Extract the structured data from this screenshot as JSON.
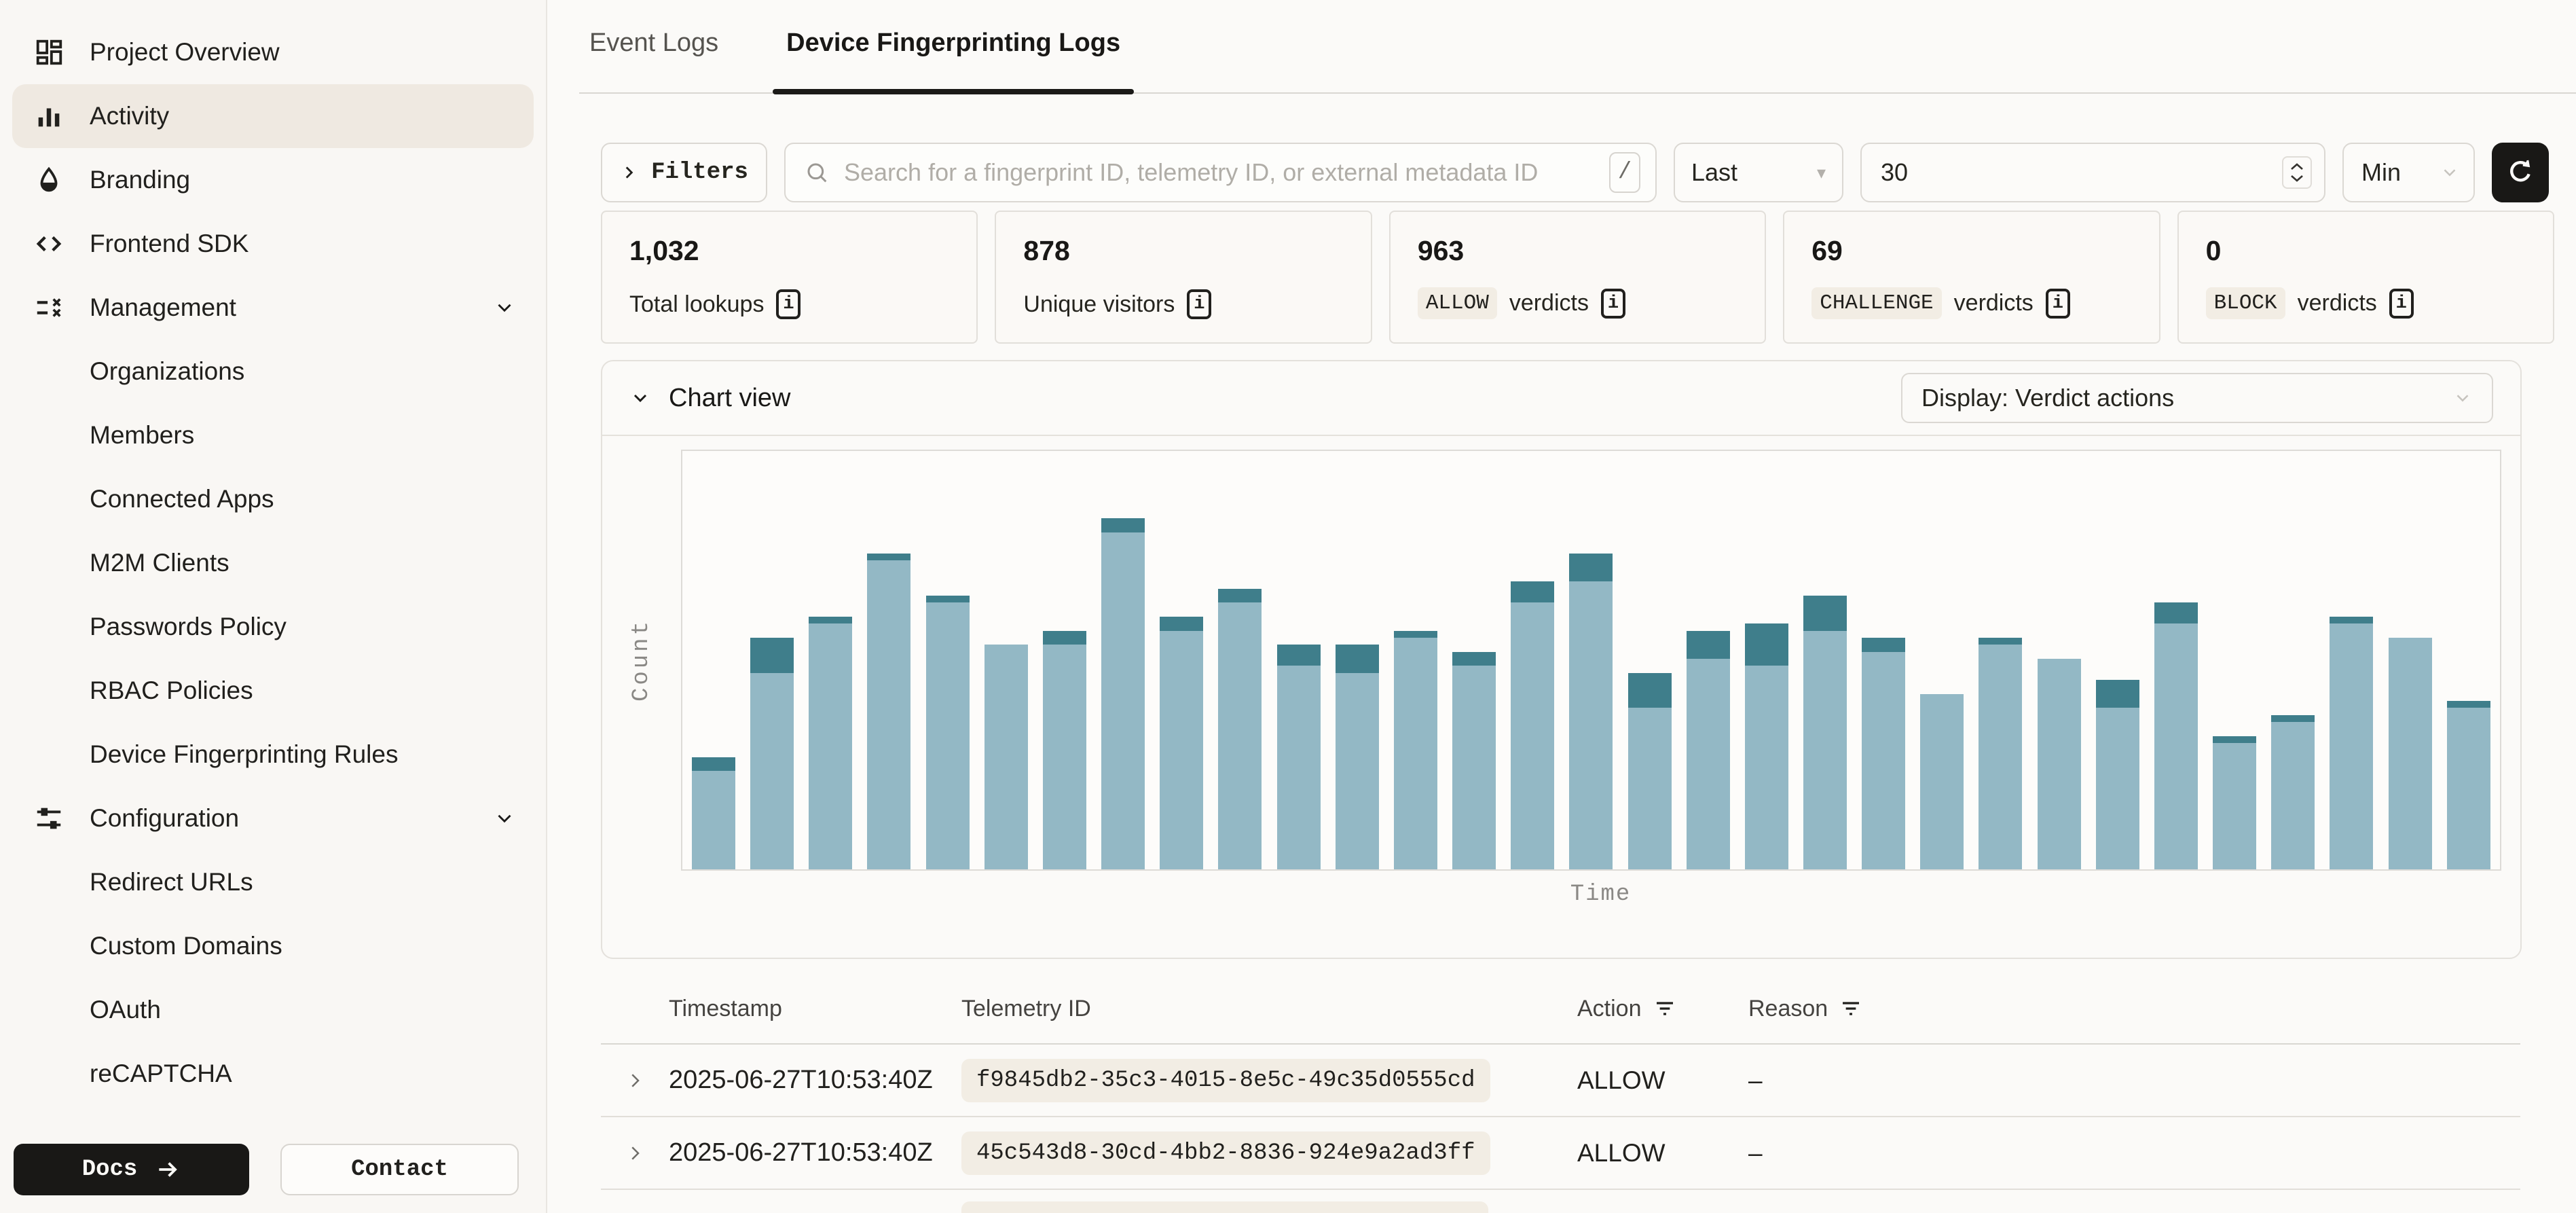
{
  "sidebar": {
    "items": [
      {
        "label": "Project Overview",
        "icon": "dashboard"
      },
      {
        "label": "Activity",
        "icon": "activity",
        "active": true
      },
      {
        "label": "Branding",
        "icon": "droplet"
      },
      {
        "label": "Frontend SDK",
        "icon": "code"
      },
      {
        "label": "Management",
        "icon": "checklist",
        "chevron": true
      },
      {
        "label": "Organizations",
        "sub": true
      },
      {
        "label": "Members",
        "sub": true
      },
      {
        "label": "Connected Apps",
        "sub": true
      },
      {
        "label": "M2M Clients",
        "sub": true
      },
      {
        "label": "Passwords Policy",
        "sub": true
      },
      {
        "label": "RBAC Policies",
        "sub": true
      },
      {
        "label": "Device Fingerprinting Rules",
        "sub": true
      },
      {
        "label": "Configuration",
        "icon": "sliders",
        "chevron": true
      },
      {
        "label": "Redirect URLs",
        "sub": true
      },
      {
        "label": "Custom Domains",
        "sub": true
      },
      {
        "label": "OAuth",
        "sub": true
      },
      {
        "label": "reCAPTCHA",
        "sub": true
      }
    ],
    "docs_button": "Docs",
    "contact_button": "Contact"
  },
  "tabs": [
    {
      "label": "Event Logs",
      "active": false
    },
    {
      "label": "Device Fingerprinting Logs",
      "active": true
    }
  ],
  "toolbar": {
    "filters_label": "Filters",
    "search_placeholder": "Search for a fingerprint ID, telemetry ID, or external metadata ID",
    "search_shortcut": "/",
    "range_mode": "Last",
    "range_value": "30",
    "range_unit": "Min"
  },
  "stats": [
    {
      "value": "1,032",
      "label": "Total lookups"
    },
    {
      "value": "878",
      "label": "Unique visitors"
    },
    {
      "value": "963",
      "badge": "ALLOW",
      "label": "verdicts"
    },
    {
      "value": "69",
      "badge": "CHALLENGE",
      "label": "verdicts"
    },
    {
      "value": "0",
      "badge": "BLOCK",
      "label": "verdicts"
    }
  ],
  "chart_section": {
    "title": "Chart view",
    "display_select": "Display: Verdict actions"
  },
  "chart_data": {
    "type": "bar",
    "stacked": true,
    "title": "",
    "xlabel": "Time",
    "ylabel": "Count",
    "grid": false,
    "x_tick_labels_shown": false,
    "y_tick_labels_shown": false,
    "bucket_count": 31,
    "ylim": [
      0,
      60
    ],
    "series": [
      {
        "name": "ALLOW",
        "color": "#93b8c5",
        "values": [
          14,
          28,
          35,
          44,
          38,
          32,
          32,
          48,
          34,
          38,
          29,
          28,
          33,
          29,
          38,
          41,
          23,
          30,
          29,
          34,
          31,
          25,
          32,
          30,
          23,
          35,
          18,
          21,
          35,
          33,
          23
        ]
      },
      {
        "name": "CHALLENGE",
        "color": "#3f7e8b",
        "values": [
          2,
          5,
          1,
          1,
          1,
          0,
          2,
          2,
          2,
          2,
          3,
          4,
          1,
          2,
          3,
          4,
          5,
          4,
          6,
          5,
          2,
          0,
          1,
          0,
          4,
          3,
          1,
          1,
          1,
          0,
          1
        ]
      }
    ],
    "totals_note": {
      "total_lookups": 1032,
      "allow_total": 963,
      "challenge_total": 69,
      "block_total": 0
    }
  },
  "table": {
    "headers": [
      "Timestamp",
      "Telemetry ID",
      "Action",
      "Reason"
    ],
    "rows": [
      {
        "timestamp": "2025-06-27T10:53:40Z",
        "telemetry_id": "f9845db2-35c3-4015-8e5c-49c35d0555cd",
        "action": "ALLOW",
        "reason": "–"
      },
      {
        "timestamp": "2025-06-27T10:53:40Z",
        "telemetry_id": "45c543d8-30cd-4bb2-8836-924e9a2ad3ff",
        "action": "ALLOW",
        "reason": "–"
      },
      {
        "partial": true,
        "timestamp": "",
        "telemetry_id": "",
        "action": "",
        "reason": ""
      }
    ]
  }
}
